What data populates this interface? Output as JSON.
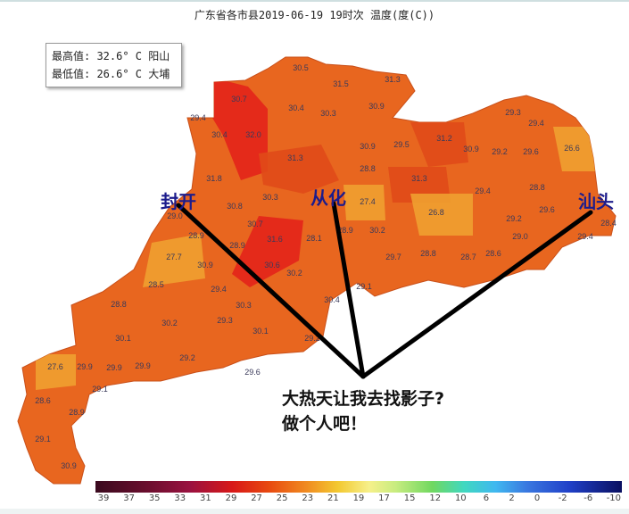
{
  "title": "广东省各市县2019-06-19 19时次 温度(度(C))",
  "info": {
    "max": "最高值: 32.6° C 阳山",
    "min": "最低值: 26.6° C 大埔"
  },
  "annotations": {
    "place1": "封开",
    "place2": "从化",
    "place3": "汕头",
    "caption_line1": "大热天让我去找影子?",
    "caption_line2": "做个人吧！"
  },
  "colors": {
    "base": "#e8661f",
    "hot": "#e3231a",
    "warm": "#e04a18",
    "cool": "#f0a030",
    "annotation": "#1c1c8c"
  },
  "legend": [
    "39",
    "37",
    "35",
    "33",
    "31",
    "29",
    "27",
    "25",
    "23",
    "21",
    "19",
    "17",
    "15",
    "12",
    "10",
    "6",
    "2",
    "0",
    "-2",
    "-6",
    "-10"
  ],
  "station_values": [
    "30.5",
    "31.5",
    "31.3",
    "30.7",
    "30.4",
    "30.3",
    "30.9",
    "29.4",
    "30.4",
    "32.0",
    "30.9",
    "29.5",
    "31.3",
    "28.8",
    "31.2",
    "30.9",
    "29.2",
    "29.6",
    "29.3",
    "29.4",
    "26.6",
    "31.3",
    "29.4",
    "28.8",
    "31.8",
    "30.3",
    "30.8",
    "27.4",
    "26.8",
    "29.2",
    "29.6",
    "28.4",
    "29.0",
    "28.9",
    "28.9",
    "30.7",
    "31.6",
    "28.1",
    "28.9",
    "30.2",
    "29.7",
    "28.8",
    "28.7",
    "28.6",
    "29.0",
    "29.4",
    "27.7",
    "30.9",
    "30.6",
    "30.2",
    "28.5",
    "29.4",
    "29.1",
    "30.4",
    "30.3",
    "28.8",
    "30.2",
    "29.3",
    "30.1",
    "30.1",
    "29.2",
    "29.2",
    "29.6",
    "27.6",
    "29.9",
    "29.9",
    "29.9",
    "28.6",
    "29.1",
    "28.9",
    "29.1",
    "30.9"
  ]
}
